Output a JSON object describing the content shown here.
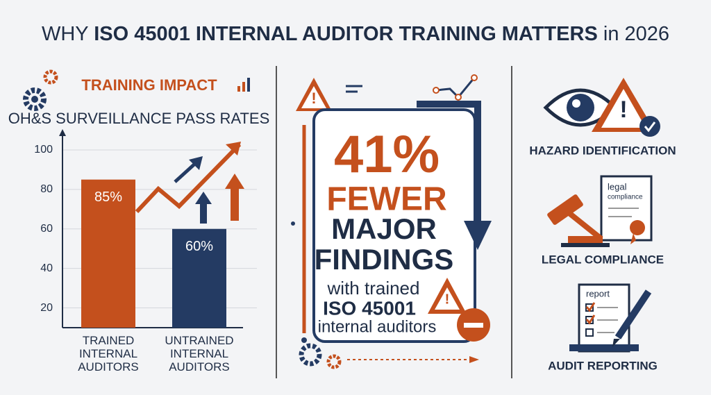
{
  "header": {
    "title_parts": [
      "WHY ",
      "ISO 45001 INTERNAL AUDITOR TRAINING MATTERS",
      " in 2026"
    ]
  },
  "chart_data": {
    "type": "bar",
    "title": "TRAINING IMPACT",
    "subtitle": "OH&S SURVEILLANCE PASS RATES",
    "categories": [
      "TRAINED INTERNAL AUDITORS",
      "UNTRAINED INTERNAL AUDITORS"
    ],
    "values": [
      85,
      60
    ],
    "value_labels": [
      "85%",
      "60%"
    ],
    "colors": [
      "#c4501d",
      "#243b63"
    ],
    "ylim": [
      10,
      100
    ],
    "yticks": [
      20,
      40,
      60,
      80,
      100
    ],
    "grid": true
  },
  "center": {
    "stat": "41%",
    "line1": "FEWER",
    "line2": "MAJOR",
    "line3": "FINDINGS",
    "line4": "with trained",
    "line5": "ISO 45001",
    "line6": "internal auditors"
  },
  "items": [
    {
      "label": "HAZARD IDENTIFICATION"
    },
    {
      "label": "LEGAL COMPLIANCE",
      "doc_title": "legal",
      "doc_sub": "compliance"
    },
    {
      "label": "AUDIT REPORTING",
      "doc_title": "report"
    }
  ]
}
